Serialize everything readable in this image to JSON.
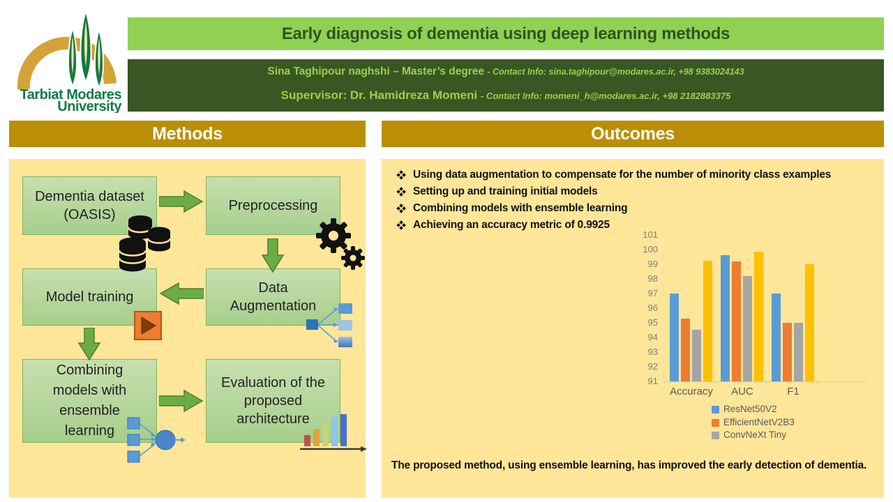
{
  "logo": {
    "line1": "Tarbiat Modares",
    "line2": "University"
  },
  "header": {
    "title": "Early diagnosis of dementia using deep learning methods",
    "author": {
      "name": "Sina Taghipour naghshi – Master’s degree ",
      "contact": "- Contact Info: sina.taghipour@modares.ac.ir, +98 9383024143"
    },
    "supervisor": {
      "name": "Supervisor: Dr. Hamidreza Momeni ",
      "contact": "- Contact Info: momeni_h@modares.ac.ir, +98 2182883375"
    }
  },
  "methods": {
    "header": "Methods",
    "boxes": [
      {
        "label": "Dementia dataset (OASIS)",
        "icon": "database-icon"
      },
      {
        "label": "Preprocessing",
        "icon": "gears-icon"
      },
      {
        "label": "Model training",
        "icon": "play-icon"
      },
      {
        "label": "Data Augmentation",
        "icon": "augmentation-icon"
      },
      {
        "label": "Combining models with ensemble learning",
        "icon": "ensemble-icon"
      },
      {
        "label": "Evaluation of the proposed architecture",
        "icon": "barchart-icon"
      }
    ]
  },
  "outcomes": {
    "header": "Outcomes",
    "bullets": [
      "Using data augmentation to compensate for the number of minority class examples",
      "Setting up and training initial models",
      "Combining models with ensemble learning",
      "Achieving an accuracy metric of 0.9925"
    ],
    "closing": "The proposed method, using ensemble learning, has improved the early detection of dementia."
  },
  "chart_data": {
    "type": "bar",
    "categories": [
      "Accuracy",
      "AUC",
      "F1"
    ],
    "series": [
      {
        "name": "ResNet50V2",
        "color": "#5B9BD5",
        "values": [
          97,
          99.6,
          97
        ]
      },
      {
        "name": "EfficientNetV2B3",
        "color": "#ED7D31",
        "values": [
          95.3,
          99.2,
          95
        ]
      },
      {
        "name": "ConvNeXt Tiny",
        "color": "#A5A5A5",
        "values": [
          94.5,
          98.2,
          95
        ]
      },
      {
        "name": "",
        "color": "#FFC000",
        "values": [
          99.25,
          99.85,
          99
        ]
      }
    ],
    "legend": [
      "ResNet50V2",
      "EfficientNetV2B3",
      "ConvNeXt Tiny"
    ],
    "legend_position": "bottom",
    "ylim": [
      91,
      101
    ],
    "ytick_step": 1,
    "grid": false,
    "title": "",
    "xlabel": "",
    "ylabel": ""
  },
  "colors": {
    "title_bar": "#90D052",
    "title_text": "#2F5420",
    "band_bg": "#3A5623",
    "band_text": "#97D24E",
    "section_header_bg": "#BB8F05",
    "panel_bg": "#FFE699",
    "box_fill": "#B2D69A",
    "box_border": "#7FB261",
    "arrow": "#6CAC45",
    "axis_text": "#7F7F7F"
  }
}
